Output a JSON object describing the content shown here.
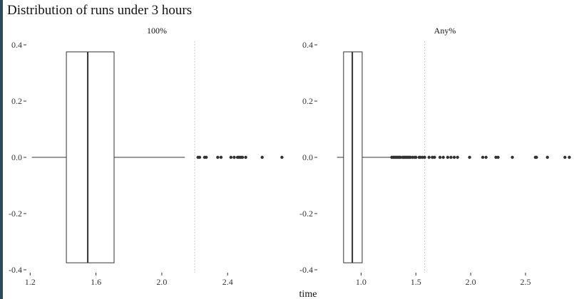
{
  "colors": {
    "frame_strip": "#2b4a5c",
    "ink": "#333333",
    "reference_line": "#bbbbbb",
    "text": "#111111"
  },
  "chart_data": {
    "type": "boxplot",
    "title": "Distribution of runs under 3 hours",
    "xlabel": "time",
    "ylabel": "",
    "grid": false,
    "legend": "none",
    "panels": [
      {
        "label": "100%",
        "xlim": [
          1.19,
          2.75
        ],
        "ylim": [
          -0.4,
          0.4
        ],
        "x_ticks": [
          1.2,
          1.6,
          2.0,
          2.4
        ],
        "x_tick_labels": [
          "1.2",
          "1.6",
          "2.0",
          "2.4"
        ],
        "y_ticks": [
          0.4,
          0.2,
          0.0,
          -0.2,
          -0.4
        ],
        "y_tick_labels": [
          "0.4",
          "0.2",
          "0.0",
          "-0.2",
          "-0.4"
        ],
        "box": {
          "whisker_low": 1.21,
          "q1": 1.42,
          "median": 1.55,
          "q3": 1.71,
          "whisker_high": 2.14,
          "box_half_height": 0.375
        },
        "outliers": [
          2.22,
          2.23,
          2.26,
          2.27,
          2.34,
          2.36,
          2.42,
          2.44,
          2.46,
          2.47,
          2.48,
          2.49,
          2.51,
          2.61,
          2.73
        ],
        "reference_line": 2.2
      },
      {
        "label": "Any%",
        "xlim": [
          0.62,
          2.91
        ],
        "ylim": [
          -0.4,
          0.4
        ],
        "x_ticks": [
          1.0,
          1.5,
          2.0,
          2.5
        ],
        "x_tick_labels": [
          "1.0",
          "1.5",
          "2.0",
          "2.5"
        ],
        "y_ticks": [
          0.4,
          0.2,
          0.0,
          -0.2,
          -0.4
        ],
        "y_tick_labels": [
          "0.4",
          "0.2",
          "0.0",
          "-0.2",
          "-0.4"
        ],
        "box": {
          "whisker_low": 0.78,
          "q1": 0.84,
          "median": 0.92,
          "q3": 1.01,
          "whisker_high": 1.27,
          "box_half_height": 0.375
        },
        "outliers": [
          1.28,
          1.29,
          1.3,
          1.31,
          1.32,
          1.33,
          1.34,
          1.35,
          1.36,
          1.38,
          1.39,
          1.4,
          1.41,
          1.42,
          1.43,
          1.44,
          1.45,
          1.47,
          1.49,
          1.5,
          1.53,
          1.54,
          1.56,
          1.58,
          1.62,
          1.65,
          1.67,
          1.72,
          1.75,
          1.79,
          1.82,
          1.85,
          1.88,
          1.99,
          2.11,
          2.14,
          2.23,
          2.25,
          2.38,
          2.59,
          2.6,
          2.7,
          2.86,
          2.9
        ],
        "reference_line": 1.58
      }
    ]
  }
}
